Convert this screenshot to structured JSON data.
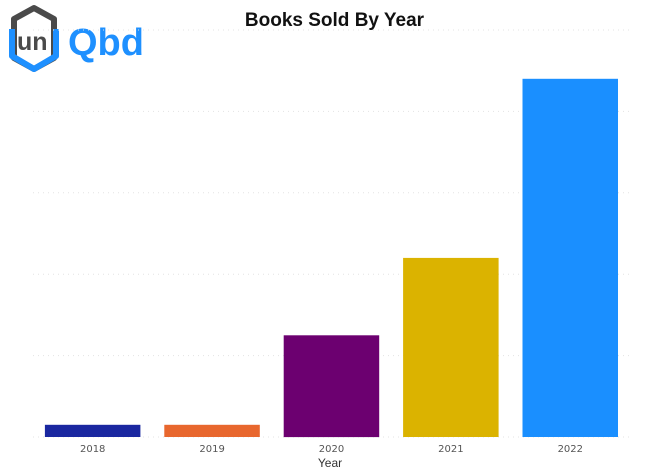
{
  "logo": {
    "left_text": "un",
    "right_text": "Qbd",
    "colors": {
      "primary": "#1E90FF",
      "dark": "#4A4A4A"
    }
  },
  "chart_data": {
    "type": "bar",
    "title": "Books Sold By Year",
    "xlabel": "Year",
    "ylabel": "",
    "categories": [
      "2018",
      "2019",
      "2020",
      "2021",
      "2022"
    ],
    "values": [
      3,
      3,
      25,
      44,
      88
    ],
    "ylim": [
      0,
      100
    ],
    "colors": [
      "#1A27A0",
      "#E8672E",
      "#6C0070",
      "#DBB300",
      "#1A8FFF"
    ],
    "grid": true
  }
}
